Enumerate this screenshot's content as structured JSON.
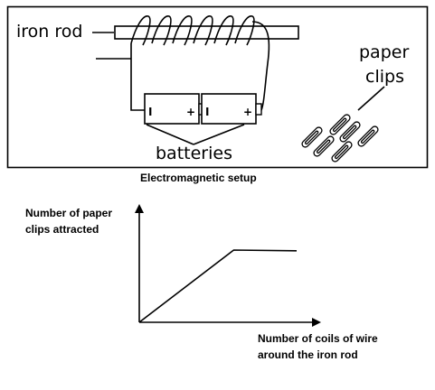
{
  "setup": {
    "iron_rod_label": "iron rod",
    "paper_clips_label_line1": "paper",
    "paper_clips_label_line2": "clips",
    "batteries_label": "batteries",
    "battery_minus": "I",
    "battery_plus": "+",
    "caption": "Electromagnetic setup"
  },
  "graph": {
    "ylabel_line1": "Number of paper",
    "ylabel_line2": "clips attracted",
    "xlabel_line1": "Number of coils of wire",
    "xlabel_line2": "around the iron rod"
  },
  "chart_data": {
    "type": "line",
    "title": "",
    "xlabel": "Number of coils of wire around the iron rod",
    "ylabel": "Number of paper clips attracted",
    "series": [
      {
        "x": [
          0,
          0.6,
          1.0
        ],
        "y": [
          0,
          1.0,
          0.99
        ]
      }
    ]
  }
}
